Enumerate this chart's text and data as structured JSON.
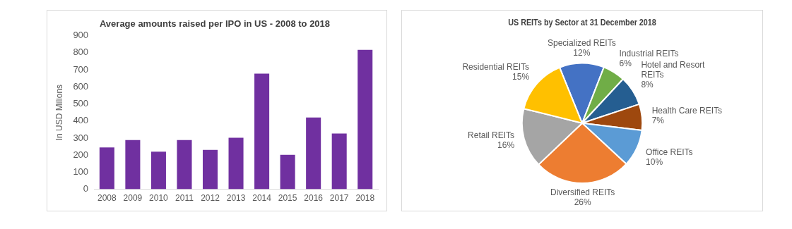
{
  "chart_data": [
    {
      "type": "bar",
      "title": "Average amounts raised per IPO in US - 2008 to 2018",
      "ylabel": "In USD Milions",
      "categories": [
        "2008",
        "2009",
        "2010",
        "2011",
        "2012",
        "2013",
        "2014",
        "2015",
        "2016",
        "2017",
        "2018"
      ],
      "values": [
        245,
        288,
        220,
        288,
        231,
        302,
        677,
        202,
        420,
        327,
        817
      ],
      "color": "#7030a0",
      "ylim": [
        0,
        900
      ],
      "yticks": [
        0,
        100,
        200,
        300,
        400,
        500,
        600,
        700,
        800,
        900
      ],
      "grid": false,
      "legend": false
    },
    {
      "type": "pie",
      "title": "US REITs by Sector at 31 December 2018",
      "categories": [
        "Specialized REITs",
        "Industrial REITs",
        "Hotel and Resort REITs",
        "Health Care REITs",
        "Office REITs",
        "Diversified REITs",
        "Retail REITs",
        "Residential REITs"
      ],
      "values": [
        12,
        6,
        8,
        7,
        10,
        26,
        16,
        15
      ],
      "colors": [
        "#4472c4",
        "#70ad47",
        "#255e91",
        "#9e480e",
        "#5b9bd5",
        "#ed7d31",
        "#a5a5a5",
        "#ffc000"
      ],
      "value_labels": [
        "12%",
        "6%",
        "8%",
        "7%",
        "10%",
        "26%",
        "16%",
        "15%"
      ],
      "legend": false
    }
  ]
}
